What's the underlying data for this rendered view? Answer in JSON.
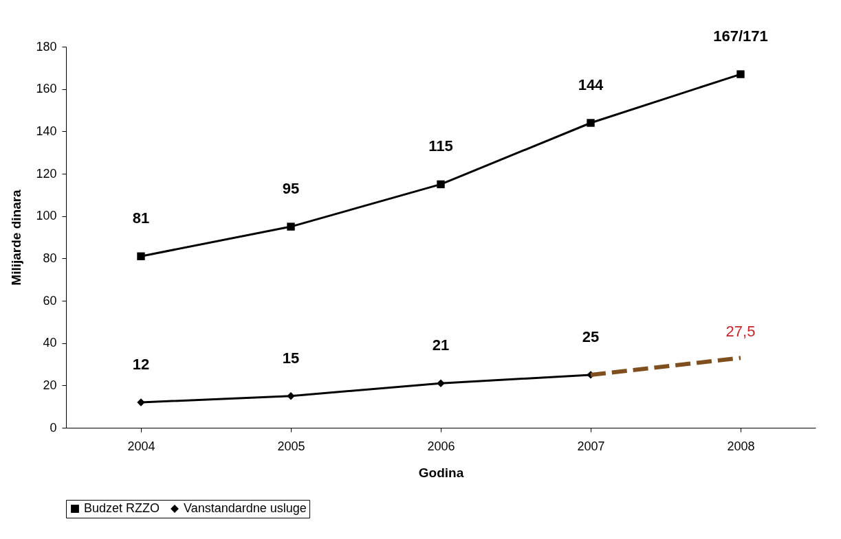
{
  "chart_data": {
    "type": "line",
    "xlabel": "Godina",
    "ylabel": "Milijarde dinara",
    "categories": [
      "2004",
      "2005",
      "2006",
      "2007",
      "2008"
    ],
    "ylim": [
      0,
      180
    ],
    "yticks": [
      0,
      20,
      40,
      60,
      80,
      100,
      120,
      140,
      160,
      180
    ],
    "grid": false,
    "legend": "bottom",
    "series": [
      {
        "name": "Budzet RZZO",
        "color": "#000000",
        "marker": "square",
        "line_style": "solid",
        "values": [
          81,
          95,
          115,
          144,
          167
        ],
        "value_labels": [
          "81",
          "95",
          "115",
          "144",
          "167/171"
        ]
      },
      {
        "name": "Vanstandardne usluge",
        "color": "#000000",
        "marker": "diamond",
        "line_style": "solid",
        "values": [
          12,
          15,
          21,
          25,
          null
        ],
        "value_labels": [
          "12",
          "15",
          "21",
          "25",
          null
        ]
      },
      {
        "color": "#7f4f1f",
        "marker": "none",
        "line_style": "dashed",
        "values": [
          null,
          null,
          null,
          25,
          33
        ]
      }
    ],
    "annotations": [
      {
        "text": "27,5",
        "x": "2008",
        "y": 33
      }
    ]
  }
}
